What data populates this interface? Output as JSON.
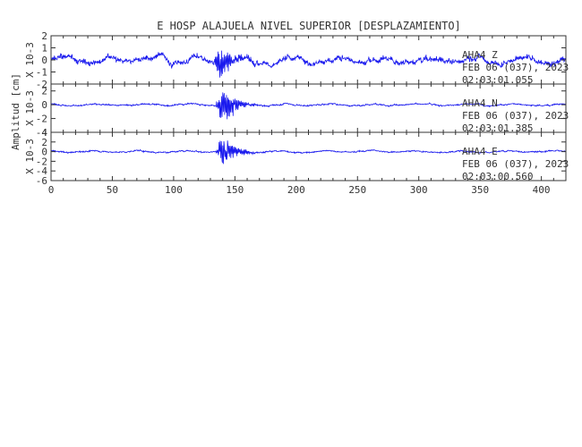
{
  "chart_data": {
    "type": "line",
    "title": "E HOSP ALAJUELA NIVEL SUPERIOR [DESPLAZAMIENTO]",
    "ylabel": "Amplitud [cm]",
    "xlim": [
      0,
      420
    ],
    "x_ticks": [
      "0",
      "50",
      "100",
      "150",
      "200",
      "250",
      "300",
      "350",
      "400"
    ],
    "line_color": "#1a1aee",
    "panels": [
      {
        "name": "AHA4  Z",
        "date": "FEB 06 (037), 2023",
        "time": "02:03:01.055",
        "scale_label": "X 10-3",
        "ylim": [
          -2,
          2
        ],
        "y_ticks": [
          "2",
          "1",
          "0",
          "-1",
          "-2"
        ],
        "background_amplitude": 0.7,
        "peak_time": 138,
        "peak_amplitude": 1.9
      },
      {
        "name": "AHA4  N",
        "date": "FEB 06 (037), 2023",
        "time": "02:03:01.385",
        "scale_label": "X 10-3",
        "ylim": [
          -4,
          3
        ],
        "y_ticks": [
          "2",
          "0",
          "-2",
          "-4"
        ],
        "background_amplitude": 0.3,
        "peak_time": 140,
        "peak_amplitude": 3.8
      },
      {
        "name": "AHA4  E",
        "date": "FEB 06 (037), 2023",
        "time": "02:03:00.560",
        "scale_label": "X 10-3",
        "ylim": [
          -6,
          4
        ],
        "y_ticks": [
          "4",
          "2",
          "0",
          "-2",
          "-4",
          "-6"
        ],
        "background_amplitude": 0.4,
        "peak_time": 140,
        "peak_amplitude": 4.5
      }
    ]
  }
}
